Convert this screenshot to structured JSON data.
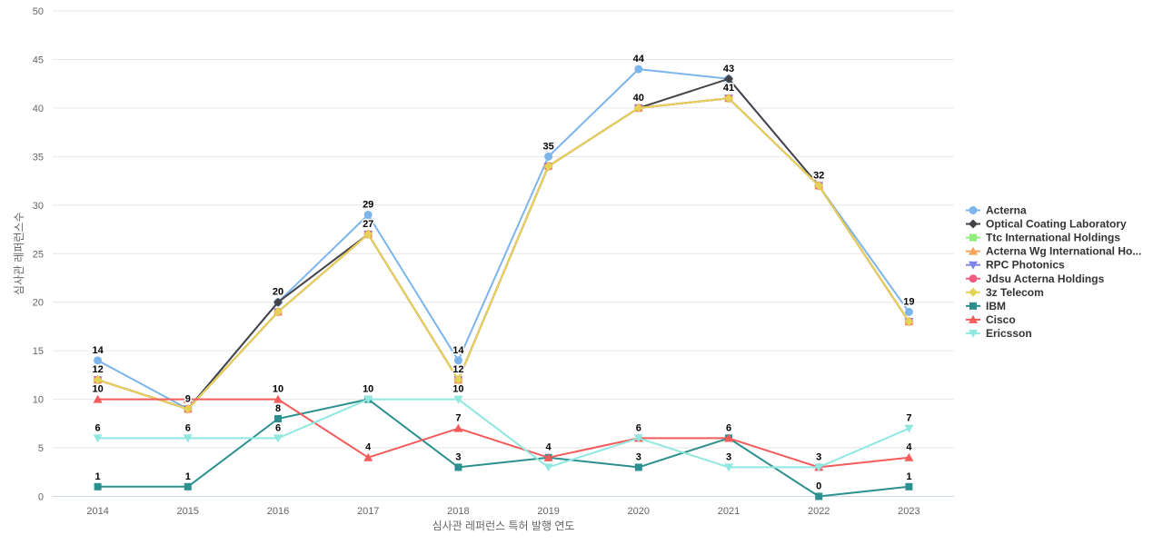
{
  "page": {
    "background": "#ffffff"
  },
  "chart_data": {
    "type": "line",
    "title": "",
    "xlabel": "심사관 레퍼런스 특허 발행 연도",
    "ylabel": "심사관 레퍼런스수",
    "categories": [
      "2014",
      "2015",
      "2016",
      "2017",
      "2018",
      "2019",
      "2020",
      "2021",
      "2022",
      "2023"
    ],
    "ylim": [
      0,
      50
    ],
    "ytick_step": 5,
    "grid": "horizontal-only",
    "legend_position": "right-middle",
    "series": [
      {
        "name": "Acterna",
        "color": "#7cb5ec",
        "marker": "circle",
        "values": [
          14,
          9,
          20,
          29,
          14,
          35,
          44,
          43,
          32,
          19
        ]
      },
      {
        "name": "Optical Coating Laboratory",
        "color": "#434348",
        "marker": "diamond",
        "values": [
          12,
          9,
          20,
          27,
          12,
          34,
          40,
          43,
          32,
          18
        ]
      },
      {
        "name": "Ttc International Holdings",
        "color": "#90ed7d",
        "marker": "square",
        "values": [
          12,
          9,
          19,
          27,
          12,
          34,
          40,
          41,
          32,
          18
        ]
      },
      {
        "name": "Acterna Wg International Ho...",
        "color": "#f7a35c",
        "marker": "triangle",
        "values": [
          12,
          9,
          19,
          27,
          12,
          34,
          40,
          41,
          32,
          18
        ]
      },
      {
        "name": "RPC Photonics",
        "color": "#8085e9",
        "marker": "triangle-down",
        "values": [
          12,
          9,
          19,
          27,
          12,
          34,
          40,
          41,
          32,
          18
        ]
      },
      {
        "name": "Jdsu Acterna Holdings",
        "color": "#f15c80",
        "marker": "circle",
        "values": [
          12,
          9,
          19,
          27,
          12,
          34,
          40,
          41,
          32,
          18
        ]
      },
      {
        "name": "3z Telecom",
        "color": "#e4d354",
        "marker": "diamond",
        "values": [
          12,
          9,
          19,
          27,
          12,
          34,
          40,
          41,
          32,
          18
        ]
      },
      {
        "name": "IBM",
        "color": "#2b908f",
        "marker": "square",
        "values": [
          1,
          1,
          8,
          10,
          3,
          4,
          3,
          6,
          0,
          1
        ]
      },
      {
        "name": "Cisco",
        "color": "#f45b5b",
        "marker": "triangle",
        "values": [
          10,
          10,
          10,
          4,
          7,
          4,
          6,
          6,
          3,
          4
        ]
      },
      {
        "name": "Ericsson",
        "color": "#91e8e1",
        "marker": "triangle-down",
        "values": [
          6,
          6,
          6,
          10,
          10,
          3,
          6,
          3,
          3,
          7
        ]
      }
    ],
    "colors": {
      "grid_line": "#e6e6e6",
      "x_axis_line": "#ccd6eb",
      "tick_label": "#666666",
      "axis_title": "#666666",
      "legend_text": "#333333",
      "data_label": "#000000",
      "data_label_halo": "#ffffff"
    }
  }
}
